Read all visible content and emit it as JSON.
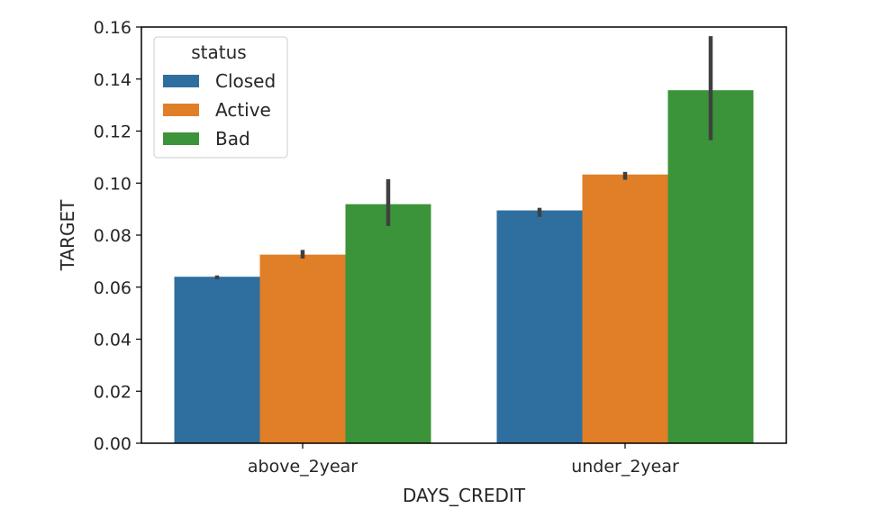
{
  "chart_data": {
    "type": "bar",
    "title": "",
    "xlabel": "DAYS_CREDIT",
    "ylabel": "TARGET",
    "categories": [
      "above_2year",
      "under_2year"
    ],
    "ylim": [
      0,
      0.16
    ],
    "yticks": [
      "0.00",
      "0.02",
      "0.04",
      "0.06",
      "0.08",
      "0.10",
      "0.12",
      "0.14",
      "0.16"
    ],
    "grid": false,
    "legend": {
      "title": "status",
      "placement": "top-left"
    },
    "series": [
      {
        "name": "Closed",
        "color": "#2f6f9f",
        "values": [
          0.064,
          0.0895
        ],
        "error": [
          [
            0.063,
            0.0645
          ],
          [
            0.087,
            0.0905
          ]
        ]
      },
      {
        "name": "Active",
        "color": "#e07f27",
        "values": [
          0.0725,
          0.1033
        ],
        "error": [
          [
            0.071,
            0.0743
          ],
          [
            0.1013,
            0.1043
          ]
        ]
      },
      {
        "name": "Bad",
        "color": "#3b943a",
        "values": [
          0.0919,
          0.1357
        ],
        "error": [
          [
            0.0835,
            0.1015
          ],
          [
            0.1165,
            0.1565
          ]
        ]
      }
    ]
  }
}
